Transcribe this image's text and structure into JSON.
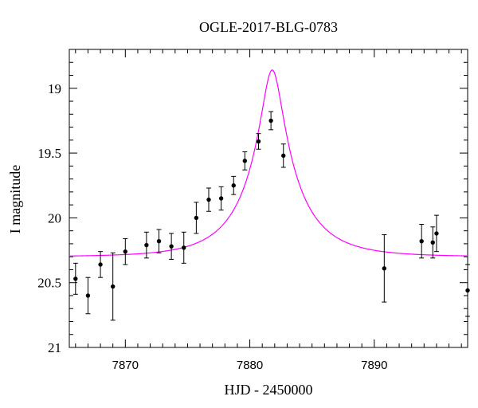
{
  "chart_data": {
    "type": "scatter",
    "title": "OGLE-2017-BLG-0783",
    "xlabel": "HJD - 2450000",
    "ylabel": "I magnitude",
    "xlim": [
      7865.5,
      7897.5
    ],
    "ylim": [
      21.0,
      18.7
    ],
    "y_inverted": true,
    "xticks": [
      7870,
      7880,
      7890
    ],
    "yticks": [
      19,
      19.5,
      20,
      20.5,
      21
    ],
    "ytick_labels": [
      "19",
      "19.5",
      "20",
      "20.5",
      "21"
    ],
    "grid": false,
    "colors": {
      "points": "#000000",
      "model": "#ff00ff",
      "axes": "#000000"
    },
    "series": [
      {
        "type": "errorbar",
        "points": [
          {
            "x": 7866.0,
            "y": 20.47,
            "err": 0.12
          },
          {
            "x": 7867.0,
            "y": 20.6,
            "err": 0.14
          },
          {
            "x": 7868.0,
            "y": 20.36,
            "err": 0.1
          },
          {
            "x": 7869.0,
            "y": 20.53,
            "err": 0.26
          },
          {
            "x": 7870.0,
            "y": 20.26,
            "err": 0.1
          },
          {
            "x": 7871.7,
            "y": 20.21,
            "err": 0.1
          },
          {
            "x": 7872.7,
            "y": 20.18,
            "err": 0.09
          },
          {
            "x": 7873.7,
            "y": 20.22,
            "err": 0.1
          },
          {
            "x": 7874.7,
            "y": 20.23,
            "err": 0.12
          },
          {
            "x": 7875.7,
            "y": 20.0,
            "err": 0.12
          },
          {
            "x": 7876.7,
            "y": 19.86,
            "err": 0.09
          },
          {
            "x": 7877.7,
            "y": 19.85,
            "err": 0.09
          },
          {
            "x": 7878.7,
            "y": 19.75,
            "err": 0.07
          },
          {
            "x": 7879.6,
            "y": 19.56,
            "err": 0.07
          },
          {
            "x": 7880.7,
            "y": 19.41,
            "err": 0.06
          },
          {
            "x": 7881.7,
            "y": 19.25,
            "err": 0.07
          },
          {
            "x": 7882.7,
            "y": 19.52,
            "err": 0.09
          },
          {
            "x": 7890.8,
            "y": 20.39,
            "err": 0.26
          },
          {
            "x": 7893.8,
            "y": 20.18,
            "err": 0.13
          },
          {
            "x": 7894.7,
            "y": 20.19,
            "err": 0.12
          },
          {
            "x": 7895.0,
            "y": 20.12,
            "err": 0.14
          },
          {
            "x": 7897.5,
            "y": 20.56,
            "err": 0.2
          }
        ]
      },
      {
        "type": "line",
        "model": {
          "t0": 7881.8,
          "u0": 0.18,
          "tE": 4.5,
          "fs": 0.6,
          "fb": 0.4,
          "I_base": 20.3
        }
      }
    ]
  }
}
